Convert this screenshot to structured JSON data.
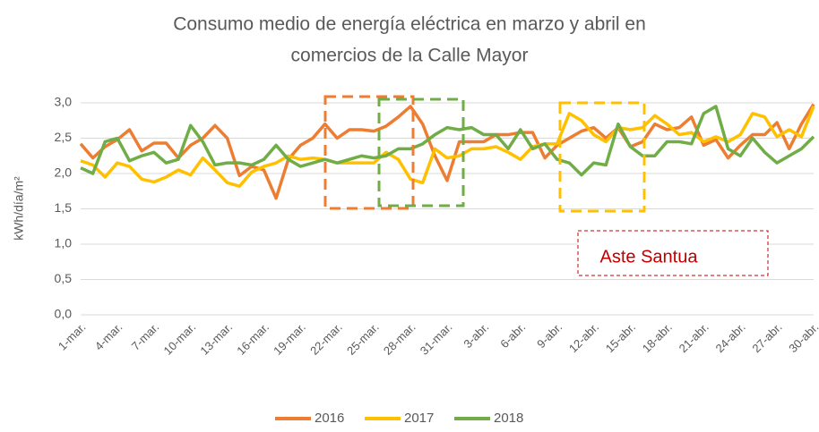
{
  "chart_data": {
    "type": "line",
    "title": [
      "Consumo medio de energía eléctrica en marzo y abril en",
      "comercios de la Calle Mayor"
    ],
    "y_label": "kWh/día/m²",
    "annotation": "Aste Santua",
    "categories": [
      "1-mar.",
      null,
      null,
      "4-mar.",
      null,
      null,
      "7-mar.",
      null,
      null,
      "10-mar.",
      null,
      null,
      "13-mar.",
      null,
      null,
      "16-mar.",
      null,
      null,
      "19-mar.",
      null,
      null,
      "22-mar.",
      null,
      null,
      "25-mar.",
      null,
      null,
      "28-mar.",
      null,
      null,
      "31-mar.",
      null,
      null,
      "3-abr.",
      null,
      null,
      "6-abr.",
      null,
      null,
      "9-abr.",
      null,
      null,
      "12-abr.",
      null,
      null,
      "15-abr.",
      null,
      null,
      "18-abr.",
      null,
      null,
      "21-abr.",
      null,
      null,
      "24-abr.",
      null,
      null,
      "27-abr.",
      null,
      null,
      "30-abr."
    ],
    "series": [
      {
        "name": "2016",
        "color": "#ed7d31",
        "values": [
          2.42,
          2.22,
          2.38,
          2.48,
          2.62,
          2.32,
          2.43,
          2.43,
          2.22,
          2.4,
          2.5,
          2.68,
          2.5,
          1.97,
          2.1,
          2.05,
          1.65,
          2.2,
          2.4,
          2.5,
          2.7,
          2.5,
          2.62,
          2.62,
          2.6,
          2.67,
          2.8,
          2.95,
          2.7,
          2.25,
          1.9,
          2.45,
          2.45,
          2.45,
          2.55,
          2.55,
          2.58,
          2.58,
          2.22,
          2.4,
          2.5,
          2.6,
          2.65,
          2.5,
          2.65,
          2.38,
          2.45,
          2.7,
          2.62,
          2.65,
          2.8,
          2.4,
          2.48,
          2.22,
          2.4,
          2.55,
          2.55,
          2.72,
          2.35,
          2.7,
          2.98
        ]
      },
      {
        "name": "2017",
        "color": "#ffc000",
        "values": [
          2.18,
          2.12,
          1.95,
          2.15,
          2.1,
          1.92,
          1.88,
          1.95,
          2.05,
          1.98,
          2.22,
          2.05,
          1.87,
          1.82,
          2.02,
          2.1,
          2.15,
          2.25,
          2.2,
          2.22,
          2.2,
          2.15,
          2.15,
          2.15,
          2.15,
          2.3,
          2.2,
          1.92,
          1.87,
          2.35,
          2.22,
          2.25,
          2.35,
          2.35,
          2.38,
          2.3,
          2.2,
          2.38,
          2.42,
          2.42,
          2.85,
          2.75,
          2.55,
          2.45,
          2.65,
          2.62,
          2.65,
          2.82,
          2.7,
          2.55,
          2.58,
          2.45,
          2.52,
          2.45,
          2.55,
          2.85,
          2.8,
          2.52,
          2.62,
          2.52,
          2.95
        ]
      },
      {
        "name": "2018",
        "color": "#70ad47",
        "values": [
          2.08,
          2.0,
          2.45,
          2.5,
          2.18,
          2.25,
          2.3,
          2.15,
          2.2,
          2.68,
          2.45,
          2.12,
          2.15,
          2.15,
          2.12,
          2.2,
          2.4,
          2.2,
          2.1,
          2.15,
          2.2,
          2.15,
          2.2,
          2.25,
          2.22,
          2.25,
          2.35,
          2.35,
          2.42,
          2.55,
          2.65,
          2.62,
          2.65,
          2.55,
          2.55,
          2.35,
          2.62,
          2.35,
          2.42,
          2.2,
          2.15,
          1.98,
          2.15,
          2.12,
          2.7,
          2.38,
          2.25,
          2.25,
          2.45,
          2.45,
          2.42,
          2.85,
          2.95,
          2.35,
          2.25,
          2.5,
          2.3,
          2.15,
          2.25,
          2.35,
          2.52
        ]
      }
    ],
    "ylim": [
      0,
      3
    ],
    "yticks": [
      {
        "value": 0,
        "label": "0,0"
      },
      {
        "value": 0.5,
        "label": "0,5"
      },
      {
        "value": 1,
        "label": "1,0"
      },
      {
        "value": 1.5,
        "label": "1,5"
      },
      {
        "value": 2,
        "label": "2,0"
      },
      {
        "value": 2.5,
        "label": "2,5"
      },
      {
        "value": 3,
        "label": "3,0"
      }
    ],
    "grid": true,
    "legend": "bottom"
  }
}
